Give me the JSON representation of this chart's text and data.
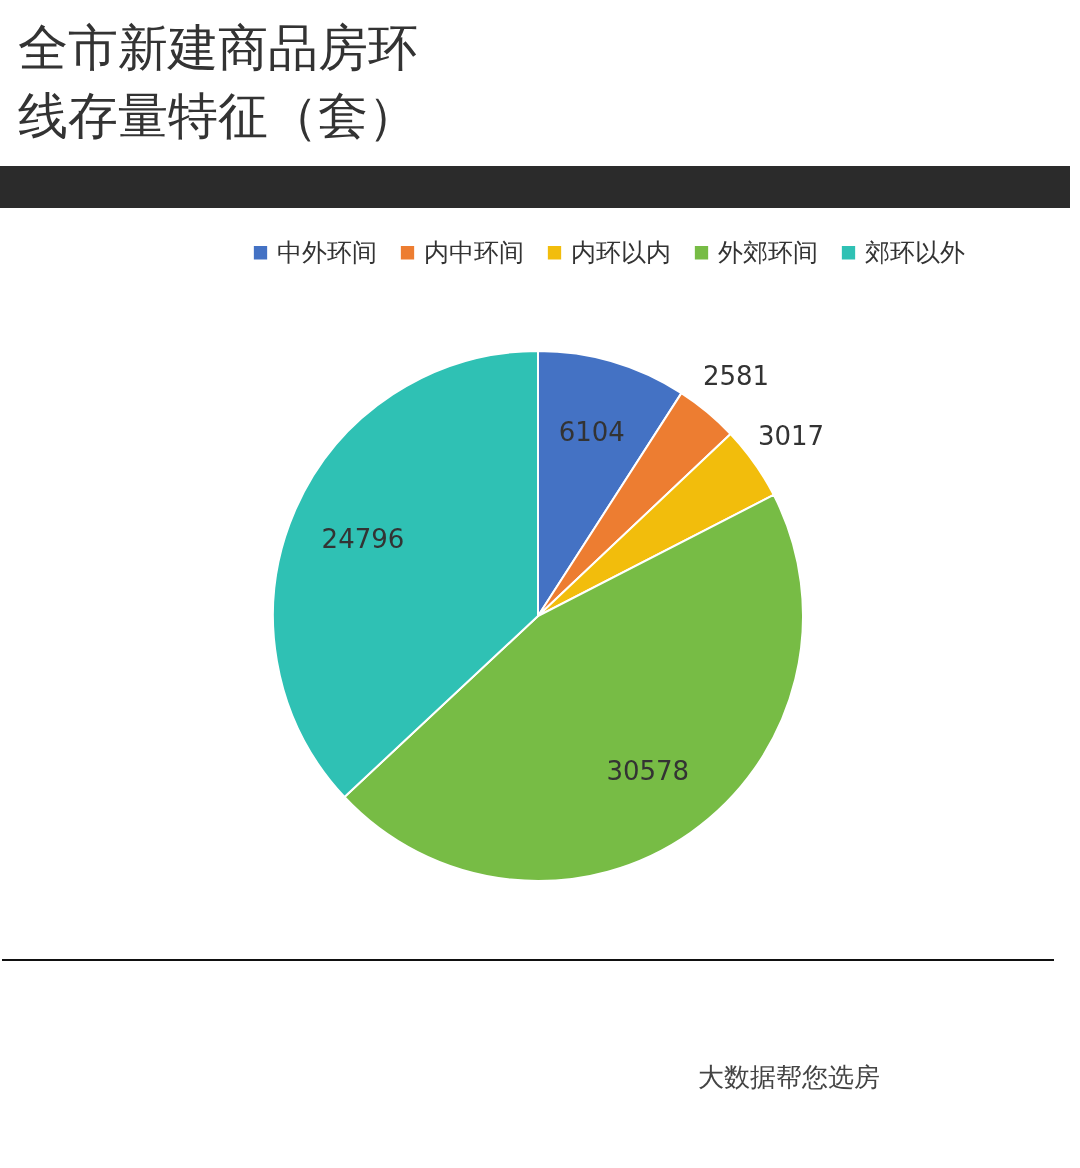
{
  "chart_data": {
    "type": "pie",
    "title": "全市新建商品房环线存量特征（套）",
    "categories": [
      "中外环间",
      "内中环间",
      "内环以内",
      "外郊环间",
      "郊环以外"
    ],
    "values": [
      6104,
      2581,
      3017,
      30578,
      24796
    ],
    "colors": [
      "#4472c4",
      "#ed7d31",
      "#f2bd0c",
      "#77bc45",
      "#2fc1b4"
    ],
    "data_labels": true,
    "legend": "top",
    "annotations": [
      "大数据帮您选房"
    ]
  }
}
